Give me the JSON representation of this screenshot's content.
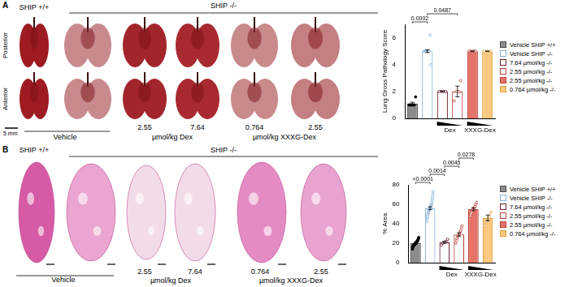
{
  "figure": {
    "panels": [
      {
        "label": "A",
        "headers": [
          "SHIP +/+",
          "SHIP -/-"
        ],
        "rows": [
          "Posterior",
          "Anterior"
        ],
        "scale_bar": "5 mm",
        "bottom_labels": [
          "Vehicle",
          "2.55",
          "7.64",
          "µmol/kg Dex",
          "0.764",
          "2.55",
          "µmol/kg XXXG-Dex"
        ]
      },
      {
        "label": "B",
        "headers": [
          "SHIP +/+",
          "SHIP -/-"
        ],
        "bottom_labels": [
          "Vehicle",
          "2.55",
          "7.64",
          "µmol/kg Dex",
          "0.764",
          "2.55",
          "µmol/kg XXXG-Dex"
        ]
      }
    ]
  },
  "chart_data": [
    {
      "type": "bar",
      "y_label": "Lung Gross Pathology Score",
      "categories": [
        "Vehicle SHIP +/+",
        "Vehicle SHIP -/-",
        "7.64 µmol/kg -/-",
        "2.55 µmol/kg -/-",
        "2.55 µmol/kg -/-",
        "0.764 µmol/kg -/-"
      ],
      "values": [
        1.1,
        5.0,
        2.0,
        2.0,
        5.0,
        5.0
      ],
      "errors": [
        0.1,
        0.1,
        0,
        0.4,
        0,
        0
      ],
      "points": [
        [
          1,
          1,
          1,
          1,
          1,
          1.6
        ],
        [
          5,
          5,
          5,
          5,
          5,
          5,
          5,
          5,
          6.2,
          4
        ],
        [
          2,
          2,
          2,
          2
        ],
        [
          1.3,
          2,
          2,
          2.8
        ],
        [
          5,
          5,
          5,
          5,
          5
        ],
        [
          5,
          5,
          5
        ]
      ],
      "colors": [
        "#8c8c8c",
        "#ffffff",
        "#ffffff",
        "#ffffff",
        "#e57368",
        "#fbc980"
      ],
      "comparisons": [
        {
          "from": 0,
          "to": 1,
          "label": "0.0002"
        },
        {
          "from": 1,
          "to": 3,
          "label": "0.0487"
        }
      ],
      "groups": [
        {
          "label": "Dex",
          "start": 2,
          "end": 3
        },
        {
          "label": "XXXG-Dex",
          "start": 4,
          "end": 5
        }
      ],
      "ylim": [
        0,
        7
      ],
      "yticks": [
        0,
        2,
        4,
        6
      ],
      "grid": false,
      "legend": "right",
      "tick_labels": "y"
    },
    {
      "type": "bar",
      "y_label": "% Area",
      "categories": [
        "Vehicle SHIP +/+",
        "Vehicle SHIP -/-",
        "7.64 µmol/kg -/-",
        "2.55 µmol/kg -/-",
        "2.55 µmol/kg -/-",
        "0.764 µmol/kg -/-"
      ],
      "values": [
        20,
        56,
        21,
        29,
        55,
        46
      ],
      "errors": [
        0.8,
        1.5,
        1,
        1.7,
        1.5,
        3
      ],
      "points": [
        [
          14,
          16,
          17,
          17,
          18,
          18,
          19,
          19,
          19,
          20,
          20,
          20,
          21,
          21,
          21,
          22,
          22,
          23,
          23,
          24,
          25,
          26
        ],
        [
          42,
          45,
          47,
          48,
          50,
          51,
          52,
          53,
          54,
          55,
          55,
          56,
          57,
          57,
          58,
          58,
          59,
          60,
          61,
          62,
          64,
          66,
          68,
          70,
          73
        ],
        [
          18,
          20,
          21,
          22,
          24
        ],
        [
          20,
          23,
          25,
          27,
          28,
          29,
          30,
          32,
          33,
          36,
          38
        ],
        [
          48,
          50,
          52,
          54,
          55,
          56,
          57,
          58,
          60,
          62
        ],
        [
          38,
          42,
          45,
          48,
          52
        ]
      ],
      "colors": [
        "#8c8c8c",
        "#ffffff",
        "#ffffff",
        "#ffffff",
        "#e57368",
        "#fbc980"
      ],
      "comparisons": [
        {
          "from": 0,
          "to": 1,
          "label": "<0.0001"
        },
        {
          "from": 1,
          "to": 2,
          "label": "0.0014"
        },
        {
          "from": 2,
          "to": 3,
          "label": "0.0045"
        },
        {
          "from": 3,
          "to": 4,
          "label": "0.0278"
        }
      ],
      "groups": [
        {
          "label": "Dex",
          "start": 2,
          "end": 3
        },
        {
          "label": "XXXG-Dex",
          "start": 4,
          "end": 5
        }
      ],
      "ylim": [
        0,
        80
      ],
      "yticks": [
        0,
        20,
        40,
        60,
        80
      ],
      "grid": false,
      "legend": "right",
      "tick_labels": "y"
    }
  ]
}
